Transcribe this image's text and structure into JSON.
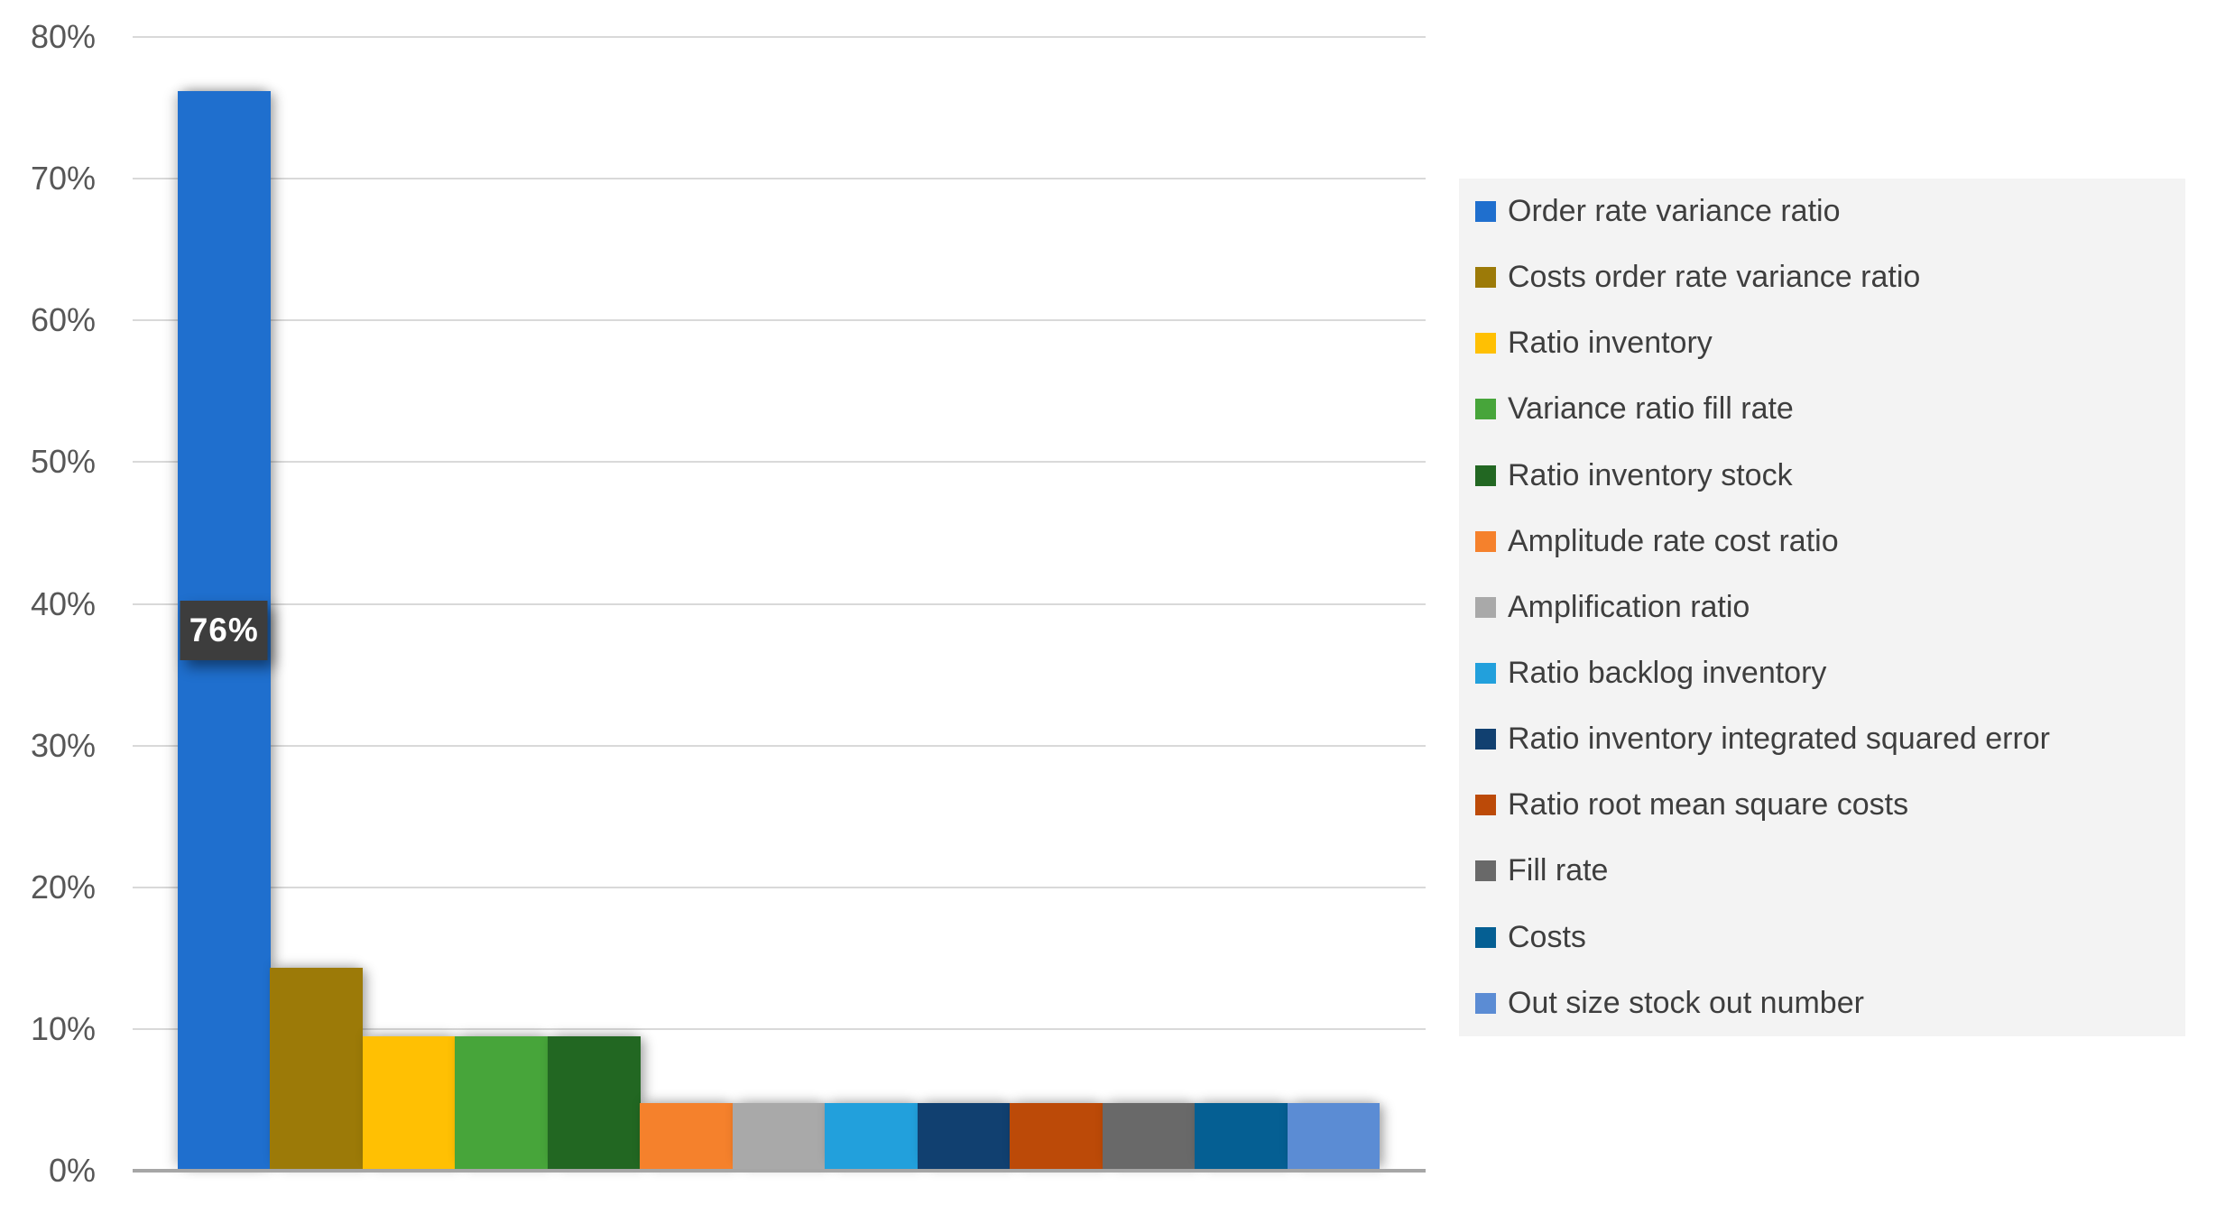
{
  "chart_data": {
    "type": "bar",
    "title": "",
    "xlabel": "",
    "ylabel": "",
    "ylim": [
      0,
      80
    ],
    "ytick_labels": [
      "0%",
      "10%",
      "20%",
      "30%",
      "40%",
      "50%",
      "60%",
      "70%",
      "80%"
    ],
    "grid": true,
    "legend_position": "right",
    "categories": [
      "Order rate variance ratio",
      "Costs order rate variance ratio",
      "Ratio inventory",
      "Variance ratio fill rate",
      "Ratio inventory stock",
      "Amplitude rate cost ratio",
      "Amplification ratio",
      "Ratio backlog inventory",
      "Ratio inventory integrated squared error",
      "Ratio root mean square costs",
      "Fill rate",
      "Costs",
      "Out size stock out number"
    ],
    "values": [
      76.2,
      14.3,
      9.5,
      9.5,
      9.5,
      4.8,
      4.8,
      4.8,
      4.8,
      4.8,
      4.8,
      4.8,
      4.8
    ],
    "bar_colors": [
      "#1f6fce",
      "#9c7a08",
      "#ffc003",
      "#47a53a",
      "#226722",
      "#f5812c",
      "#a9a9a9",
      "#22a0dc",
      "#114070",
      "#bc4a08",
      "#696969",
      "#055f93",
      "#5b8cd4"
    ],
    "data_label": {
      "bar_index": 0,
      "text": "76%"
    }
  },
  "style": {
    "background": "#ffffff",
    "gridline_color": "#d9d9d9",
    "axis_line_color": "#a6a6a6",
    "tick_text_color": "#575757",
    "legend_bg": "#f3f3f3",
    "legend_text_color": "#3e3e3e",
    "label_box_bg": "#3d3d3d",
    "label_box_text": "#ffffff"
  }
}
